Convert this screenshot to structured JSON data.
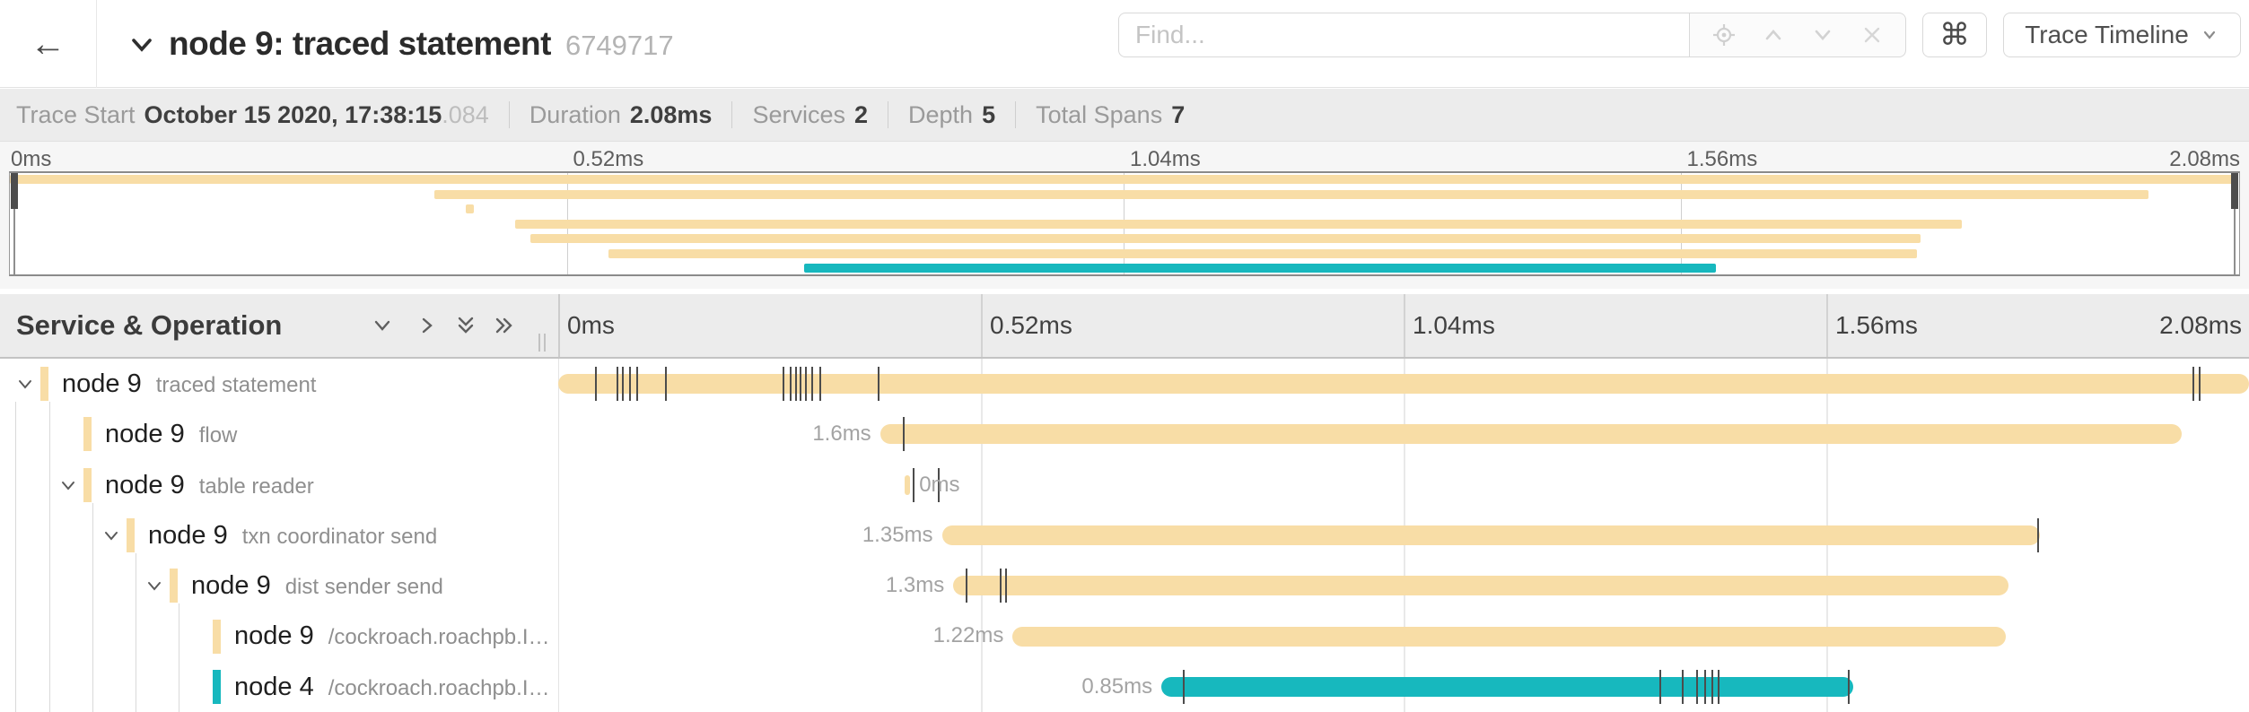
{
  "header": {
    "back_icon": "←",
    "collapse_toggle_icon": "chevron-down",
    "title": "node 9: traced statement",
    "trace_id": "6749717",
    "keyboard_shortcuts_icon": "⌘",
    "view_selector": {
      "label": "Trace Timeline",
      "chevron_icon": "chevron-down"
    }
  },
  "find": {
    "placeholder": "Find...",
    "controls": [
      "locate-icon",
      "chevron-up-icon",
      "chevron-down-icon",
      "clear-icon"
    ]
  },
  "summary": {
    "items": [
      {
        "label": "Trace Start",
        "value": "October 15 2020, 17:38:15",
        "suffix": ".084"
      },
      {
        "label": "Duration",
        "value": "2.08ms"
      },
      {
        "label": "Services",
        "value": "2"
      },
      {
        "label": "Depth",
        "value": "5"
      },
      {
        "label": "Total Spans",
        "value": "7"
      }
    ]
  },
  "timeline": {
    "duration_ms": 2.08,
    "axis_labels": [
      "0ms",
      "0.52ms",
      "1.04ms",
      "1.56ms",
      "2.08ms"
    ],
    "left_header": "Service & Operation",
    "collapse_controls": [
      "collapse-one-icon",
      "expand-one-icon",
      "collapse-all-icon",
      "expand-all-icon"
    ]
  },
  "colors": {
    "node9_span": "#F8DDA6",
    "node4_span": "#17B8BE",
    "log_tick": "#4c4c4c"
  },
  "chart_data": {
    "type": "gantt-trace",
    "xlabel_unit": "ms",
    "x_range_ms": [
      0,
      2.08
    ],
    "spans": [
      {
        "service": "node 9",
        "operation": "traced statement",
        "depth": 0,
        "has_children": true,
        "color": "#F8DDA6",
        "start_ms": 0,
        "end_ms": 2.08,
        "duration_label": "",
        "label_side": "none",
        "log_ticks_ms": [
          0.046,
          0.073,
          0.079,
          0.088,
          0.097,
          0.132,
          0.277,
          0.286,
          0.293,
          0.298,
          0.305,
          0.312,
          0.322,
          0.394,
          2.012,
          2.019
        ]
      },
      {
        "service": "node 9",
        "operation": "flow",
        "depth": 1,
        "has_children": false,
        "color": "#F8DDA6",
        "start_ms": 0.396,
        "end_ms": 1.997,
        "duration_label": "1.6ms",
        "label_side": "left",
        "log_ticks_ms": [
          0.425
        ]
      },
      {
        "service": "node 9",
        "operation": "table reader",
        "depth": 1,
        "has_children": true,
        "color": "#F8DDA6",
        "start_ms": 0.426,
        "end_ms": 0.433,
        "duration_label": "0ms",
        "label_side": "right",
        "log_ticks_ms": [
          0.437,
          0.468
        ]
      },
      {
        "service": "node 9",
        "operation": "txn coordinator send",
        "depth": 2,
        "has_children": true,
        "color": "#F8DDA6",
        "start_ms": 0.472,
        "end_ms": 1.823,
        "duration_label": "1.35ms",
        "label_side": "left",
        "log_ticks_ms": [
          1.821
        ]
      },
      {
        "service": "node 9",
        "operation": "dist sender send",
        "depth": 3,
        "has_children": true,
        "color": "#F8DDA6",
        "start_ms": 0.486,
        "end_ms": 1.784,
        "duration_label": "1.3ms",
        "label_side": "left",
        "log_ticks_ms": [
          0.502,
          0.544,
          0.551
        ]
      },
      {
        "service": "node 9",
        "operation": "/cockroach.roachpb.I…",
        "depth": 4,
        "has_children": false,
        "color": "#F8DDA6",
        "start_ms": 0.559,
        "end_ms": 1.781,
        "duration_label": "1.22ms",
        "label_side": "left",
        "log_ticks_ms": []
      },
      {
        "service": "node 4",
        "operation": "/cockroach.roachpb.I…",
        "depth": 4,
        "has_children": false,
        "color": "#17B8BE",
        "start_ms": 0.742,
        "end_ms": 1.593,
        "duration_label": "0.85ms",
        "label_side": "left",
        "log_ticks_ms": [
          0.769,
          1.356,
          1.383,
          1.401,
          1.411,
          1.42,
          1.428,
          1.588
        ]
      }
    ]
  }
}
